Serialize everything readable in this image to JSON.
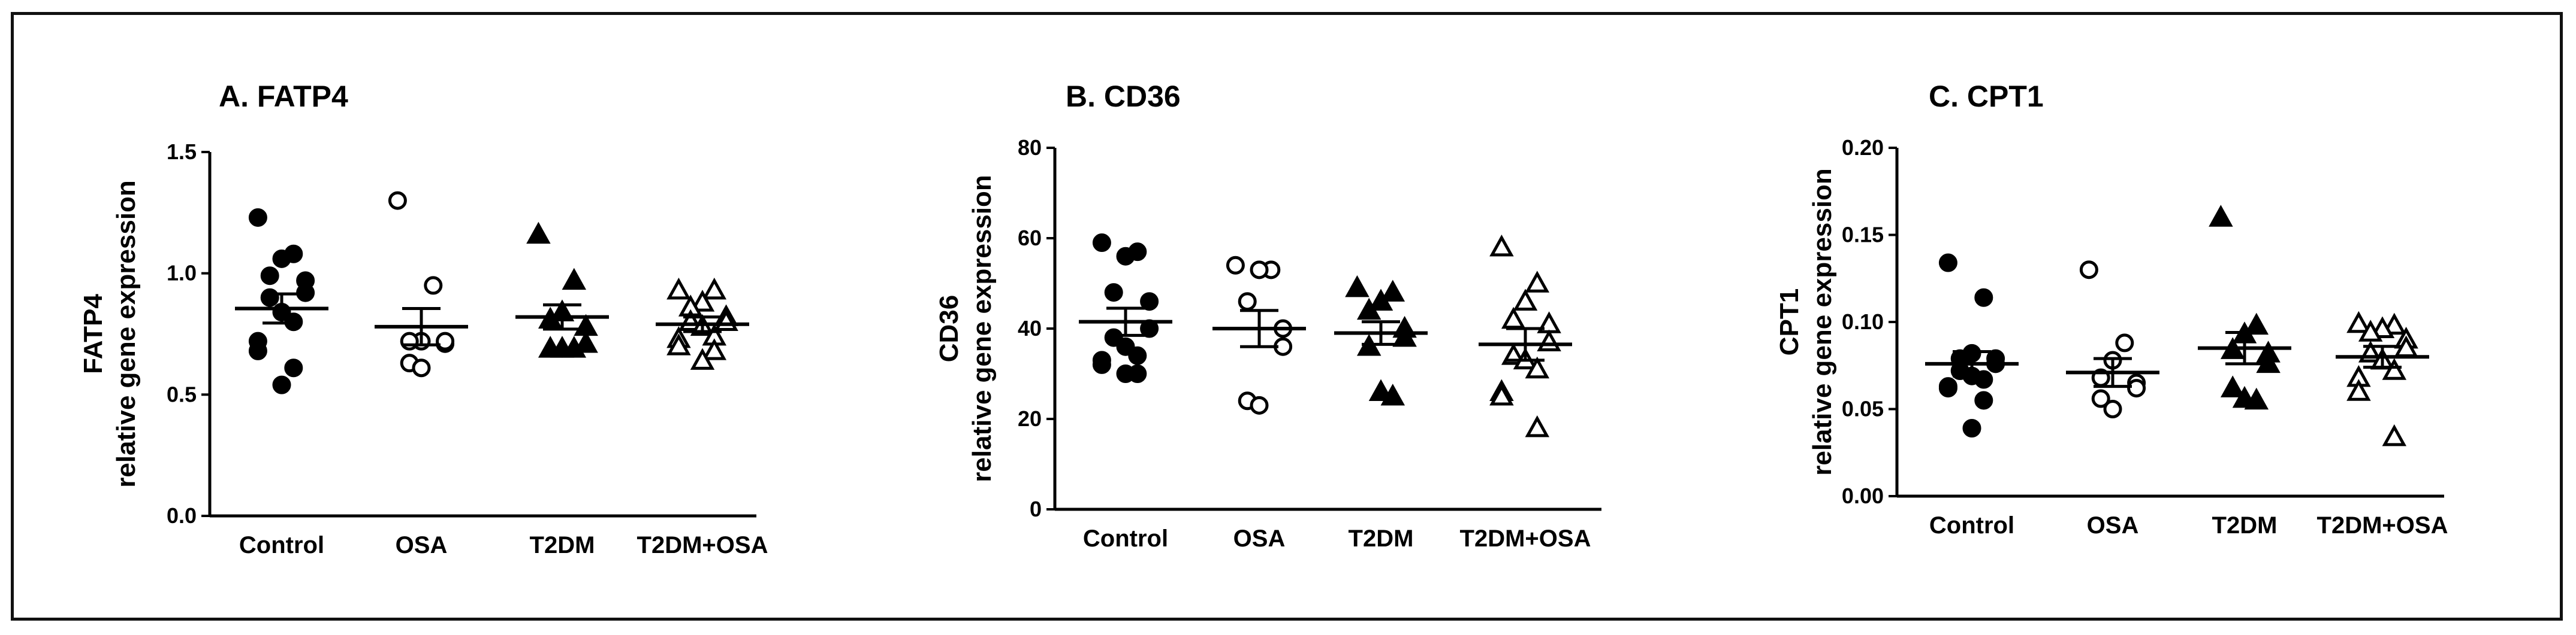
{
  "chart_data": [
    {
      "type": "scatter",
      "title": "A. FATP4",
      "ylabel_line1": "FATP4",
      "ylabel_line2": "relative gene expression",
      "xlabel": "",
      "ylim": [
        0,
        1.5
      ],
      "yticks": [
        "0.0",
        "0.5",
        "1.0",
        "1.5"
      ],
      "ytick_values": [
        0,
        0.5,
        1.0,
        1.5
      ],
      "categories": [
        "Control",
        "OSA",
        "T2DM",
        "T2DM+OSA"
      ],
      "series": [
        {
          "name": "Control",
          "marker": "filled-circle",
          "mean": 0.855,
          "sem": 0.06,
          "values": [
            1.23,
            1.08,
            1.06,
            0.99,
            0.97,
            0.92,
            0.9,
            0.84,
            0.8,
            0.72,
            0.68,
            0.61,
            0.54
          ]
        },
        {
          "name": "OSA",
          "marker": "open-circle",
          "mean": 0.78,
          "sem": 0.075,
          "values": [
            1.3,
            0.95,
            0.72,
            0.72,
            0.71,
            0.72,
            0.63,
            0.61
          ]
        },
        {
          "name": "T2DM",
          "marker": "filled-triangle",
          "mean": 0.82,
          "sem": 0.05,
          "values": [
            1.16,
            0.97,
            0.84,
            0.81,
            0.78,
            0.71,
            0.69,
            0.69,
            0.69
          ]
        },
        {
          "name": "T2DM+OSA",
          "marker": "open-triangle",
          "mean": 0.79,
          "sem": 0.03,
          "values": [
            0.93,
            0.93,
            0.88,
            0.86,
            0.82,
            0.8,
            0.8,
            0.78,
            0.74,
            0.73,
            0.7,
            0.68,
            0.64
          ]
        }
      ]
    },
    {
      "type": "scatter",
      "title": "B. CD36",
      "ylabel_line1": "CD36",
      "ylabel_line2": "relative gene expression",
      "xlabel": "",
      "ylim": [
        0,
        80
      ],
      "yticks": [
        "0",
        "20",
        "40",
        "60",
        "80"
      ],
      "ytick_values": [
        0,
        20,
        40,
        60,
        80
      ],
      "categories": [
        "Control",
        "OSA",
        "T2DM",
        "T2DM+OSA"
      ],
      "series": [
        {
          "name": "Control",
          "marker": "filled-circle",
          "mean": 41.5,
          "sem": 3.0,
          "values": [
            59,
            57,
            56,
            48,
            46,
            40,
            38,
            36,
            34,
            33,
            32,
            30,
            30
          ]
        },
        {
          "name": "OSA",
          "marker": "open-circle",
          "mean": 40.0,
          "sem": 4.0,
          "values": [
            54,
            53,
            53,
            46,
            40,
            36,
            24,
            23
          ]
        },
        {
          "name": "T2DM",
          "marker": "filled-triangle",
          "mean": 39.0,
          "sem": 2.5,
          "values": [
            49,
            48,
            46,
            44,
            40,
            38,
            36,
            26,
            25
          ]
        },
        {
          "name": "T2DM+OSA",
          "marker": "open-triangle",
          "mean": 36.5,
          "sem": 3.5,
          "values": [
            58,
            50,
            46,
            42,
            41,
            37,
            34,
            33,
            31,
            26,
            25,
            18
          ]
        }
      ]
    },
    {
      "type": "scatter",
      "title": "C. CPT1",
      "ylabel_line1": "CPT1",
      "ylabel_line2": "relative gene expression",
      "xlabel": "",
      "ylim": [
        0,
        0.2
      ],
      "yticks": [
        "0.00",
        "0.05",
        "0.10",
        "0.15",
        "0.20"
      ],
      "ytick_values": [
        0,
        0.05,
        0.1,
        0.15,
        0.2
      ],
      "categories": [
        "Control",
        "OSA",
        "T2DM",
        "T2DM+OSA"
      ],
      "series": [
        {
          "name": "Control",
          "marker": "filled-circle",
          "mean": 0.076,
          "sem": 0.007,
          "values": [
            0.134,
            0.114,
            0.082,
            0.079,
            0.079,
            0.076,
            0.072,
            0.069,
            0.067,
            0.063,
            0.062,
            0.055,
            0.039
          ]
        },
        {
          "name": "OSA",
          "marker": "open-circle",
          "mean": 0.071,
          "sem": 0.008,
          "values": [
            0.13,
            0.088,
            0.078,
            0.068,
            0.065,
            0.062,
            0.056,
            0.05
          ]
        },
        {
          "name": "T2DM",
          "marker": "filled-triangle",
          "mean": 0.085,
          "sem": 0.009,
          "values": [
            0.16,
            0.098,
            0.093,
            0.084,
            0.082,
            0.076,
            0.062,
            0.056,
            0.055
          ]
        },
        {
          "name": "T2DM+OSA",
          "marker": "open-triangle",
          "mean": 0.08,
          "sem": 0.006,
          "values": [
            0.099,
            0.098,
            0.096,
            0.094,
            0.09,
            0.085,
            0.082,
            0.078,
            0.072,
            0.068,
            0.06,
            0.034
          ]
        }
      ]
    }
  ]
}
